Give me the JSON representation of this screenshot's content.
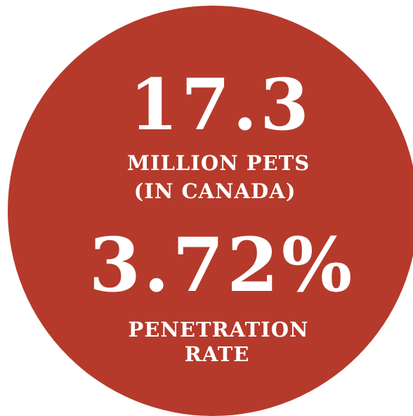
{
  "stats": [
    {
      "value": "17.3",
      "label_lines": [
        "MILLION PETS",
        "(IN CANADA)"
      ]
    },
    {
      "value": "3.72%",
      "label_lines": [
        "PENETRATION",
        "RATE"
      ]
    }
  ]
}
